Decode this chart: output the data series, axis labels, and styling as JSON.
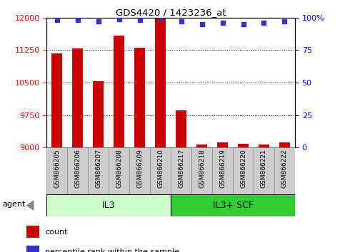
{
  "title": "GDS4420 / 1423236_at",
  "categories": [
    "GSM866205",
    "GSM866206",
    "GSM866207",
    "GSM866208",
    "GSM866209",
    "GSM866210",
    "GSM866217",
    "GSM866218",
    "GSM866219",
    "GSM866220",
    "GSM866221",
    "GSM866222"
  ],
  "count_values": [
    11170,
    11290,
    10540,
    11580,
    11300,
    11980,
    9860,
    9060,
    9110,
    9090,
    9070,
    9110
  ],
  "percentile_values": [
    98,
    98,
    97,
    99,
    98,
    100,
    97,
    95,
    96,
    95,
    96,
    97
  ],
  "ymin": 9000,
  "ymax": 12000,
  "yticks": [
    9000,
    9750,
    10500,
    11250,
    12000
  ],
  "right_yticks": [
    0,
    25,
    50,
    75,
    100
  ],
  "right_yticklabels": [
    "0",
    "25",
    "50",
    "75",
    "100%"
  ],
  "group1_label": "IL3",
  "group2_label": "IL3+ SCF",
  "agent_label": "agent",
  "bar_color": "#cc0000",
  "dot_color": "#3333cc",
  "group1_bg": "#ccffcc",
  "group2_bg": "#33cc33",
  "tick_bg": "#cccccc",
  "legend_count_label": "count",
  "legend_pct_label": "percentile rank within the sample",
  "bar_width": 0.5
}
